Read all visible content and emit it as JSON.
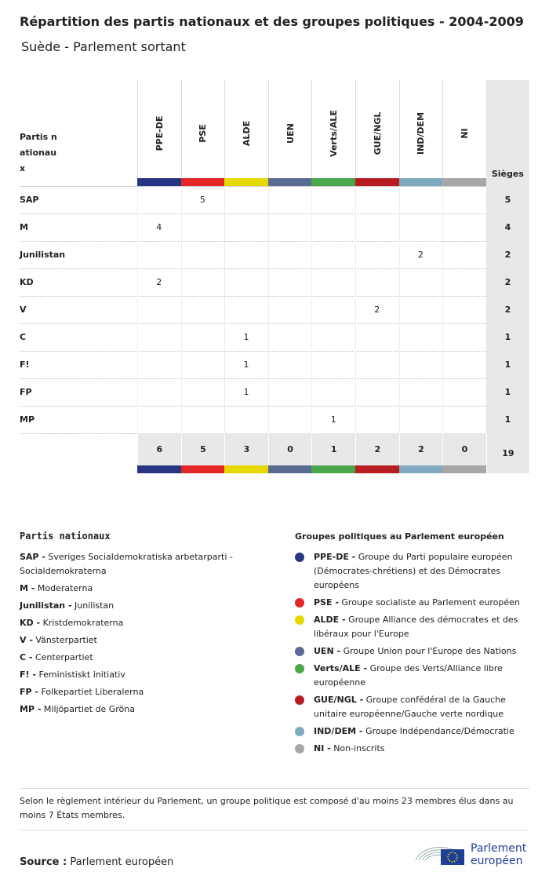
{
  "header": {
    "title": "Répartition des partis nationaux et des groupes politiques - 2004-2009",
    "subtitle": "Suède - Parlement sortant"
  },
  "table": {
    "corner": "Partis nationaux",
    "seats_header": "Sièges",
    "groups": [
      {
        "name": "PPE-DE",
        "color": "#283583"
      },
      {
        "name": "PSE",
        "color": "#e32526"
      },
      {
        "name": "ALDE",
        "color": "#e6d900"
      },
      {
        "name": "UEN",
        "color": "#5b6a93"
      },
      {
        "name": "Verts/ALE",
        "color": "#4aa84b"
      },
      {
        "name": "GUE/NGL",
        "color": "#b81d21"
      },
      {
        "name": "IND/DEM",
        "color": "#7ea9bf"
      },
      {
        "name": "NI",
        "color": "#a7a7a7"
      }
    ],
    "rows": [
      {
        "party": "SAP",
        "cells": [
          null,
          5,
          null,
          null,
          null,
          null,
          null,
          null
        ],
        "total": 5
      },
      {
        "party": "M",
        "cells": [
          4,
          null,
          null,
          null,
          null,
          null,
          null,
          null
        ],
        "total": 4
      },
      {
        "party": "Junilistan",
        "cells": [
          null,
          null,
          null,
          null,
          null,
          null,
          2,
          null
        ],
        "total": 2
      },
      {
        "party": "KD",
        "cells": [
          2,
          null,
          null,
          null,
          null,
          null,
          null,
          null
        ],
        "total": 2
      },
      {
        "party": "V",
        "cells": [
          null,
          null,
          null,
          null,
          null,
          2,
          null,
          null
        ],
        "total": 2
      },
      {
        "party": "C",
        "cells": [
          null,
          null,
          1,
          null,
          null,
          null,
          null,
          null
        ],
        "total": 1
      },
      {
        "party": "F!",
        "cells": [
          null,
          null,
          1,
          null,
          null,
          null,
          null,
          null
        ],
        "total": 1
      },
      {
        "party": "FP",
        "cells": [
          null,
          null,
          1,
          null,
          null,
          null,
          null,
          null
        ],
        "total": 1
      },
      {
        "party": "MP",
        "cells": [
          null,
          null,
          null,
          null,
          1,
          null,
          null,
          null
        ],
        "total": 1
      }
    ],
    "totals": [
      6,
      5,
      3,
      0,
      1,
      2,
      2,
      0
    ],
    "grand_total": 19
  },
  "legend_parties": {
    "title": "Partis nationaux",
    "items": [
      {
        "abbr": "SAP -",
        "text": "Sveriges Socialdemokratiska arbetarparti - Socialdemokraterna"
      },
      {
        "abbr": "M -",
        "text": "Moderaterna"
      },
      {
        "abbr": "Junilistan -",
        "text": "Junilistan"
      },
      {
        "abbr": "KD -",
        "text": "Kristdemokraterna"
      },
      {
        "abbr": "V -",
        "text": "Vänsterpartiet"
      },
      {
        "abbr": "C -",
        "text": "Centerpartiet"
      },
      {
        "abbr": "F! -",
        "text": "Feministiskt initiativ"
      },
      {
        "abbr": "FP -",
        "text": "Folkepartiet Liberalerna"
      },
      {
        "abbr": "MP -",
        "text": "Miljöpartiet de Gröna"
      }
    ]
  },
  "legend_groups": {
    "title": "Groupes politiques au Parlement européen",
    "items": [
      {
        "abbr": "PPE-DE -",
        "text": "Groupe du Parti populaire européen (Démocrates-chrétiens) et des Démocrates européens"
      },
      {
        "abbr": "PSE -",
        "text": "Groupe socialiste au Parlement européen"
      },
      {
        "abbr": "ALDE -",
        "text": "Groupe Alliance des démocrates et des libéraux pour l'Europe"
      },
      {
        "abbr": "UEN -",
        "text": "Groupe Union pour l'Europe des Nations"
      },
      {
        "abbr": "Verts/ALE -",
        "text": "Groupe des Verts/Alliance libre européenne"
      },
      {
        "abbr": "GUE/NGL -",
        "text": "Groupe confédéral de la Gauche unitaire européenne/Gauche verte nordique"
      },
      {
        "abbr": "IND/DEM -",
        "text": "Groupe Indépendance/Démocratie"
      },
      {
        "abbr": "NI -",
        "text": "Non-inscrits"
      }
    ]
  },
  "footnote": "Selon le règlement intérieur du Parlement, un groupe politique est composé d'au moins 23 membres élus dans au moins 7 États membres.",
  "source": {
    "label": "Source :",
    "text": "Parlement européen"
  },
  "logo": {
    "line1": "Parlement",
    "line2": "européen"
  }
}
